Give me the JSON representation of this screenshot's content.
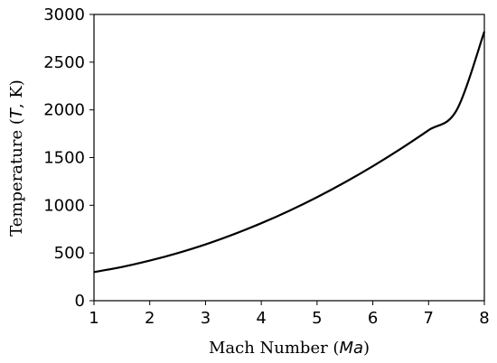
{
  "chart_data": {
    "type": "line",
    "xlabel": "Mach Number (Ma)",
    "xlabel_parts": {
      "pre": "Mach Number (",
      "italic": "Ma",
      "post": ")"
    },
    "ylabel": "Temperature (T, K)",
    "ylabel_parts": {
      "pre": "Temperature (",
      "italic": "T",
      "post": ", K)"
    },
    "xlim": [
      1,
      8
    ],
    "ylim": [
      0,
      3000
    ],
    "xticks": [
      "1",
      "2",
      "3",
      "4",
      "5",
      "6",
      "7",
      "8"
    ],
    "yticks": [
      "0",
      "500",
      "1000",
      "1500",
      "2000",
      "2500",
      "3000"
    ],
    "grid": false,
    "series": [
      {
        "x": [
          1.0,
          1.5,
          2.0,
          2.5,
          3.0,
          3.5,
          4.0,
          4.5,
          5.0,
          5.5,
          6.0,
          6.5,
          7.0,
          7.5,
          8.0
        ],
        "y": [
          300,
          353,
          420,
          499,
          590,
          695,
          812,
          942,
          1085,
          1241,
          1410,
          1592,
          1787,
          1994,
          2820
        ],
        "color": "#000000"
      }
    ]
  }
}
